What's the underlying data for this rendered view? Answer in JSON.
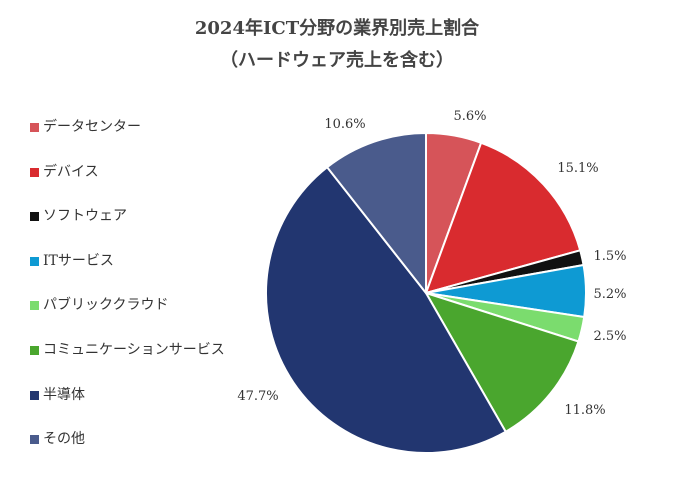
{
  "chart_data": {
    "type": "pie",
    "title_line1": "2024年ICT分野の業界別売上割合",
    "title_line2": "（ハードウェア売上を含む）",
    "legend_position": "left",
    "start_angle_deg": 0,
    "direction": "clockwise",
    "slices": [
      {
        "label": "データセンター",
        "value": 5.6,
        "display": "5.6%",
        "color": "#d65459"
      },
      {
        "label": "デバイス",
        "value": 15.1,
        "display": "15.1%",
        "color": "#d92b2f"
      },
      {
        "label": "ソフトウェア",
        "value": 1.5,
        "display": "1.5%",
        "color": "#111111"
      },
      {
        "label": "ITサービス",
        "value": 5.2,
        "display": "5.2%",
        "color": "#0e9ad3"
      },
      {
        "label": "パブリッククラウド",
        "value": 2.5,
        "display": "2.5%",
        "color": "#7bdc6e"
      },
      {
        "label": "コミュニケーションサービス",
        "value": 11.8,
        "display": "11.8%",
        "color": "#4aa62e"
      },
      {
        "label": "半導体",
        "value": 47.7,
        "display": "47.7%",
        "color": "#223670"
      },
      {
        "label": "その他",
        "value": 10.6,
        "display": "10.6%",
        "color": "#4a5b8c"
      }
    ]
  }
}
